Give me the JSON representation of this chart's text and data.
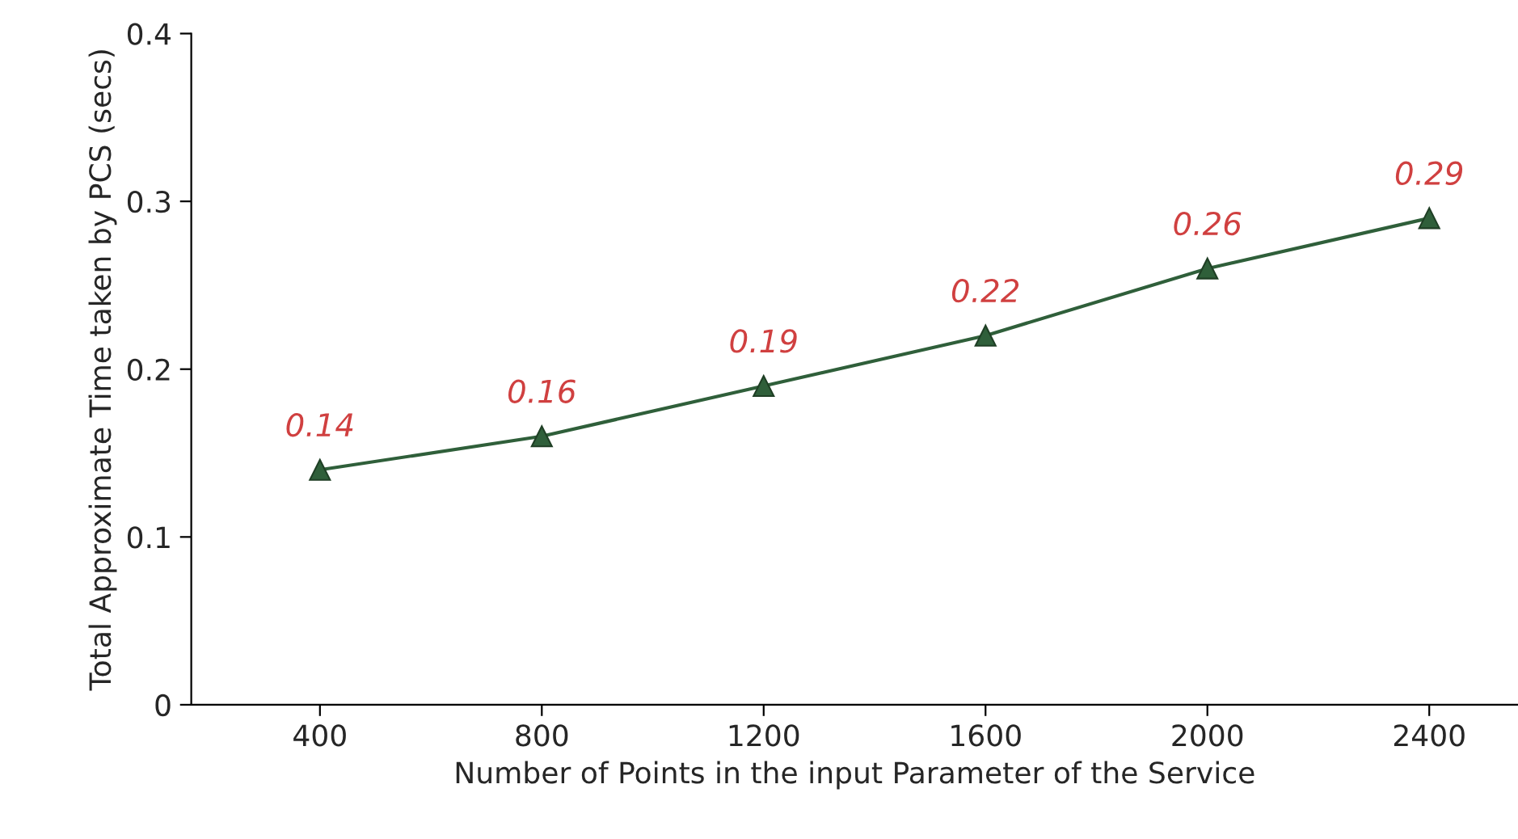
{
  "chart_data": {
    "type": "line",
    "xlabel": "Number of Points in the input Parameter of the Service",
    "ylabel": "Total Approximate Time taken by PCS (secs)",
    "categories": [
      "400",
      "800",
      "1200",
      "1600",
      "2000",
      "2400"
    ],
    "series": [
      {
        "color": "#2f5f3a",
        "values": [
          0.14,
          0.16,
          0.19,
          0.22,
          0.26,
          0.29
        ]
      }
    ],
    "ylim": [
      0,
      0.4
    ],
    "yticks": [
      0,
      0.1,
      0.2,
      0.3,
      0.4
    ],
    "data_labels": true,
    "marker": "triangle",
    "line_style": "solid",
    "grid": false,
    "legend": false
  }
}
